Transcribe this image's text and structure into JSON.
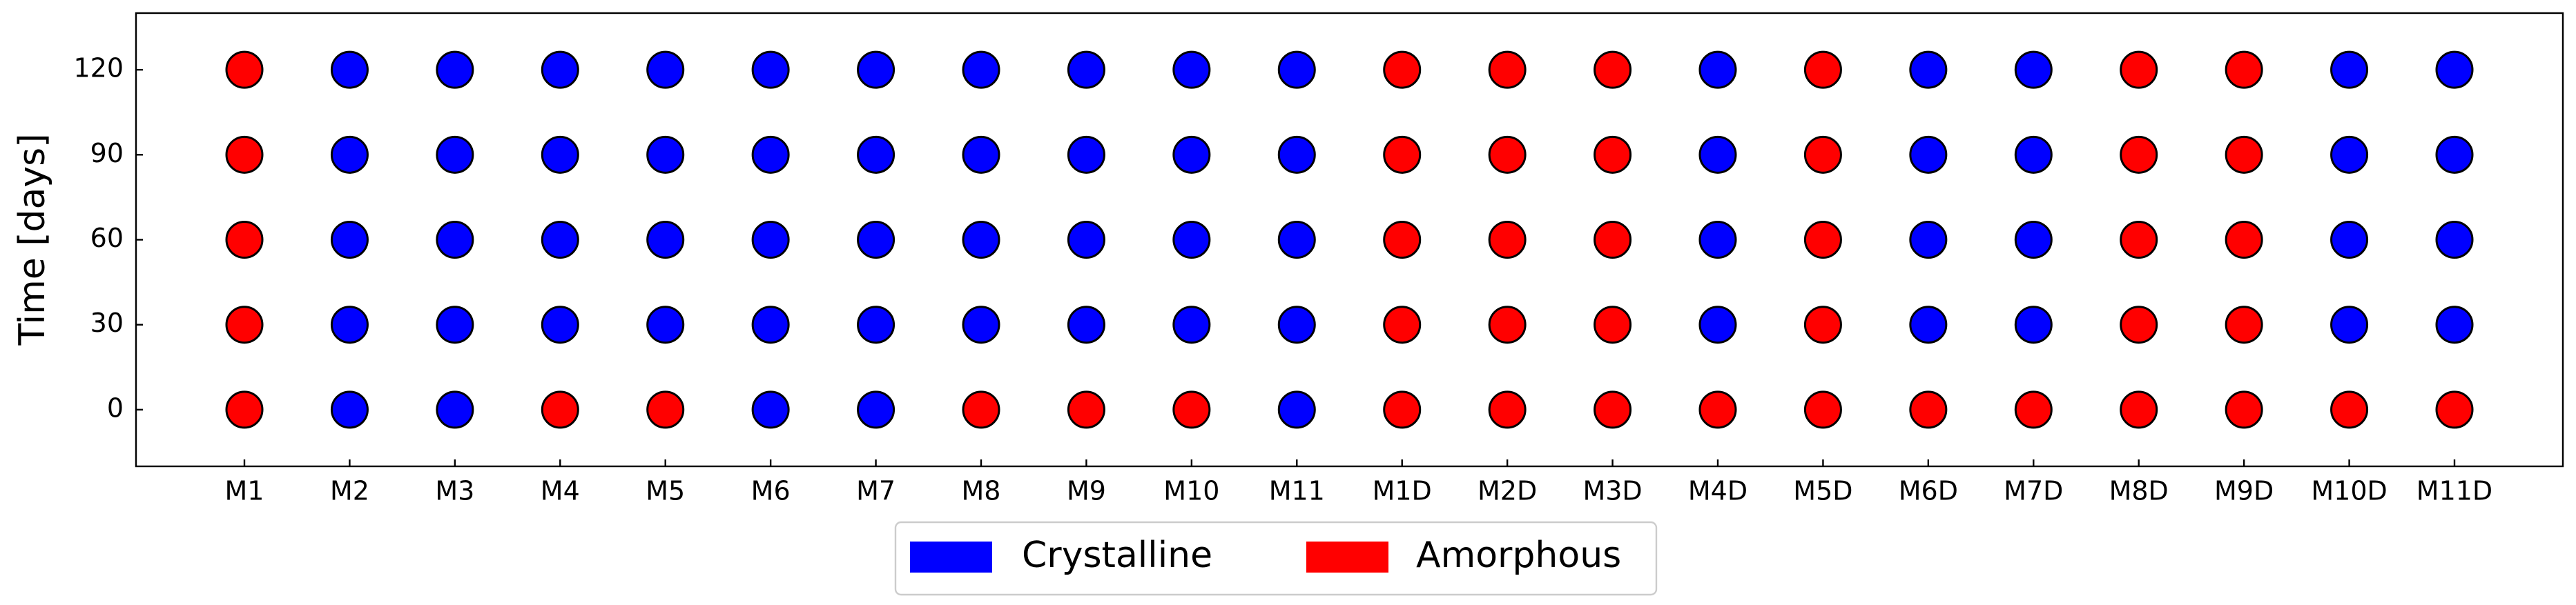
{
  "chart_data": {
    "type": "scatter",
    "ylabel": "Time [days]",
    "categories": [
      "M1",
      "M2",
      "M3",
      "M4",
      "M5",
      "M6",
      "M7",
      "M8",
      "M9",
      "M10",
      "M11",
      "M1D",
      "M2D",
      "M3D",
      "M4D",
      "M5D",
      "M6D",
      "M7D",
      "M8D",
      "M9D",
      "M10D",
      "M11D"
    ],
    "ylim": [
      -20,
      140
    ],
    "yticks": [
      0,
      30,
      60,
      90,
      120
    ],
    "legend": "bottom",
    "series": [
      {
        "name": "Crystalline",
        "color": "#0000ff",
        "x": [
          "M2",
          "M3",
          "M6",
          "M7",
          "M11",
          "M2",
          "M3",
          "M4",
          "M5",
          "M6",
          "M7",
          "M8",
          "M9",
          "M10",
          "M11",
          "M4D",
          "M6D",
          "M7D",
          "M10D",
          "M11D",
          "M2",
          "M3",
          "M4",
          "M5",
          "M6",
          "M7",
          "M8",
          "M9",
          "M10",
          "M11",
          "M4D",
          "M6D",
          "M7D",
          "M10D",
          "M11D",
          "M2",
          "M3",
          "M4",
          "M5",
          "M6",
          "M7",
          "M8",
          "M9",
          "M10",
          "M11",
          "M4D",
          "M6D",
          "M7D",
          "M10D",
          "M11D",
          "M2",
          "M3",
          "M4",
          "M5",
          "M6",
          "M7",
          "M8",
          "M9",
          "M10",
          "M11",
          "M4D",
          "M6D",
          "M7D",
          "M10D",
          "M11D"
        ],
        "values": [
          0,
          0,
          0,
          0,
          0,
          30,
          30,
          30,
          30,
          30,
          30,
          30,
          30,
          30,
          30,
          30,
          30,
          30,
          30,
          30,
          60,
          60,
          60,
          60,
          60,
          60,
          60,
          60,
          60,
          60,
          60,
          60,
          60,
          60,
          60,
          90,
          90,
          90,
          90,
          90,
          90,
          90,
          90,
          90,
          90,
          90,
          90,
          90,
          90,
          90,
          120,
          120,
          120,
          120,
          120,
          120,
          120,
          120,
          120,
          120,
          120,
          120,
          120,
          120,
          120
        ]
      },
      {
        "name": "Amorphous",
        "color": "#ff0000",
        "x": [
          "M1",
          "M4",
          "M5",
          "M8",
          "M9",
          "M10",
          "M1D",
          "M2D",
          "M3D",
          "M4D",
          "M5D",
          "M6D",
          "M7D",
          "M8D",
          "M9D",
          "M10D",
          "M11D",
          "M1",
          "M1D",
          "M2D",
          "M3D",
          "M5D",
          "M8D",
          "M9D",
          "M1",
          "M1D",
          "M2D",
          "M3D",
          "M5D",
          "M8D",
          "M9D",
          "M1",
          "M1D",
          "M2D",
          "M3D",
          "M5D",
          "M8D",
          "M9D",
          "M1",
          "M1D",
          "M2D",
          "M3D",
          "M5D",
          "M8D",
          "M9D"
        ],
        "values": [
          0,
          0,
          0,
          0,
          0,
          0,
          0,
          0,
          0,
          0,
          0,
          0,
          0,
          0,
          0,
          0,
          0,
          30,
          30,
          30,
          30,
          30,
          30,
          30,
          60,
          60,
          60,
          60,
          60,
          60,
          60,
          90,
          90,
          90,
          90,
          90,
          90,
          90,
          120,
          120,
          120,
          120,
          120,
          120,
          120
        ]
      }
    ]
  }
}
